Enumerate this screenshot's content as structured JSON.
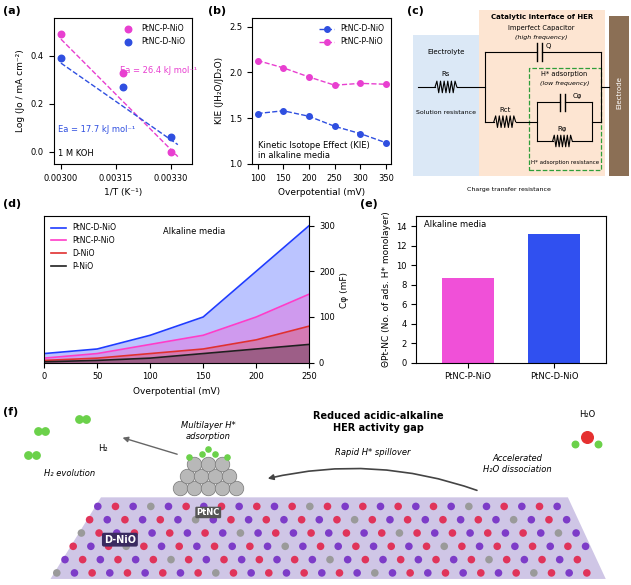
{
  "chart_data": [
    {
      "panel": "(a)",
      "type": "scatter",
      "xlabel": "1/T (K⁻¹)",
      "ylabel": "Log (Jo / mA cm⁻²)",
      "xlim": [
        0.00298,
        0.00336
      ],
      "ylim": [
        -0.05,
        0.56
      ],
      "xticks": [
        {
          "value": 0.003,
          "label": "0.00300"
        },
        {
          "value": 0.00315,
          "label": "0.00315"
        },
        {
          "value": 0.0033,
          "label": "0.00330"
        }
      ],
      "yticks": [
        0.0,
        0.2,
        0.4
      ],
      "legend": "upper right",
      "marker": "o",
      "line_style": "dashed",
      "annotations": [
        "1 M KOH"
      ],
      "series": [
        {
          "name": "PtNC-P-NiO",
          "color": "#e83fd0",
          "x": [
            0.003,
            0.00317,
            0.0033
          ],
          "values": [
            0.49,
            0.33,
            0.0
          ],
          "fit_x": [
            0.003,
            0.00332
          ],
          "fit_values": [
            0.47,
            -0.02
          ],
          "annotation": "Ea = 26.4 kJ mol⁻¹"
        },
        {
          "name": "PtNC-D-NiO",
          "color": "#2f4fe0",
          "x": [
            0.003,
            0.00317,
            0.0033
          ],
          "values": [
            0.39,
            0.27,
            0.06
          ],
          "fit_x": [
            0.003,
            0.00332
          ],
          "fit_values": [
            0.37,
            0.03
          ],
          "annotation": "Ea = 17.7 kJ mol⁻¹"
        }
      ]
    },
    {
      "panel": "(b)",
      "type": "line",
      "xlabel": "Overpotential (mV)",
      "ylabel": "KIE (JH₂O/JD₂O)",
      "x": [
        100,
        150,
        200,
        250,
        300,
        350
      ],
      "xlim": [
        90,
        360
      ],
      "xticks": [
        100,
        150,
        200,
        250,
        300,
        350
      ],
      "ylim": [
        1.0,
        2.6
      ],
      "yticks": [
        1.0,
        1.5,
        2.0,
        2.5
      ],
      "legend": "upper right",
      "marker": "o",
      "line_style": "dashed",
      "annotations": [
        "Kinetic Isotope Effect (KIE)\nin alkaline media"
      ],
      "series": [
        {
          "name": "PtNC-D-NiO",
          "color": "#2f4fe0",
          "values": [
            1.55,
            1.58,
            1.52,
            1.41,
            1.33,
            1.23
          ]
        },
        {
          "name": "PtNC-P-NiO",
          "color": "#e83fd0",
          "values": [
            2.13,
            2.05,
            1.95,
            1.86,
            1.88,
            1.87
          ]
        }
      ]
    },
    {
      "panel": "(d)",
      "type": "area",
      "xlabel": "Overpotential (mV)",
      "ylabel": "Cφ (mF)",
      "x": [
        0,
        50,
        100,
        150,
        200,
        250
      ],
      "xlim": [
        0,
        250
      ],
      "xticks": [
        0,
        50,
        100,
        150,
        200,
        250
      ],
      "ylim": [
        0,
        320
      ],
      "yticks": [
        0,
        100,
        200,
        300
      ],
      "legend": "upper left",
      "annotations": [
        "Alkaline media"
      ],
      "series": [
        {
          "name": "PtNC-D-NiO",
          "color": "#1f3cff",
          "values": [
            20,
            30,
            60,
            100,
            200,
            300
          ]
        },
        {
          "name": "PtNC-P-NiO",
          "color": "#ff3cc8",
          "values": [
            10,
            20,
            40,
            60,
            100,
            150
          ]
        },
        {
          "name": "D-NiO",
          "color": "#e03030",
          "values": [
            5,
            10,
            20,
            30,
            50,
            80
          ]
        },
        {
          "name": "P-NiO",
          "color": "#202020",
          "values": [
            2,
            5,
            10,
            20,
            30,
            40
          ]
        }
      ]
    },
    {
      "panel": "(e)",
      "type": "bar",
      "ylabel": "ΘPt-NC (No. of ads. H* monolayer)",
      "categories": [
        "PtNC-P-NiO",
        "PtNC-D-NiO"
      ],
      "values": [
        8.7,
        13.2
      ],
      "colors": [
        "#f050d8",
        "#3050f0"
      ],
      "ylim": [
        0,
        15
      ],
      "yticks": [
        0,
        2,
        4,
        6,
        8,
        10,
        12,
        14
      ],
      "annotations": [
        "Alkaline media"
      ]
    }
  ],
  "circuit": {
    "panel": "(c)",
    "electrolyte": "Electrolyte",
    "solution_resistance": "Solution resistance",
    "rs": "Rs",
    "interface_title": "Catalytic interface of HER",
    "capacitor_title": "Imperfect Capacitor",
    "capacitor_note": "(high frequency)",
    "q": "Q",
    "charge_transfer": "Charge transfer resistance",
    "rct": "Rct",
    "adsorption_title": "H* adsorption",
    "adsorption_note": "(low frequency)",
    "c_phi": "Cφ",
    "r_phi": "Rφ",
    "adsorption_resistance": "H* adsorption resistance",
    "electrode": "Electrode"
  },
  "illustration": {
    "panel": "(f)",
    "title": "Reduced acidic-alkaline\nHER activity gap",
    "h2": "H₂",
    "h2_evolution": "H₂ evolution",
    "multilayer": "Multilayer H*\nadsorption",
    "spillover": "Rapid H* spillover",
    "dissociation": "Accelerated\nH₂O dissociation",
    "h2o": "H₂O",
    "cluster": "PtNC",
    "support": "D-NiO"
  }
}
